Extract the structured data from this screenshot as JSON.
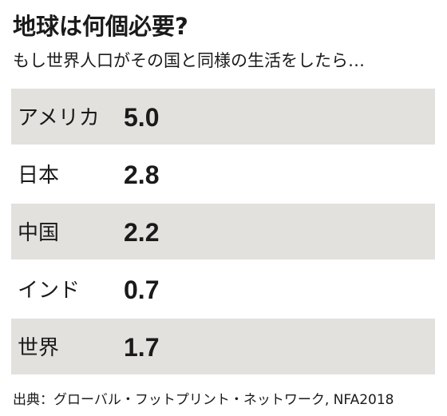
{
  "title": "地球は何個必要?",
  "subtitle": "もし世界人口がその国と同様の生活をしたら…",
  "source": "出典：グローバル・フットプリント・ネットワーク, NFA2018",
  "colors": {
    "row_shaded": "#e3e1de",
    "row_plain": "#ffffff",
    "ocean": "#123f9b",
    "land": "#2e9a5a",
    "text": "#1a1a1a"
  },
  "chart_data": {
    "type": "bar",
    "title": "地球は何個必要?",
    "categories": [
      "アメリカ",
      "日本",
      "中国",
      "インド",
      "世界"
    ],
    "values": [
      5.0,
      2.8,
      2.2,
      0.7,
      1.7
    ],
    "value_labels": [
      "5.0",
      "2.8",
      "2.2",
      "0.7",
      "1.7"
    ],
    "unit_icon": "earth-globe-icon",
    "xlabel": "",
    "ylabel": ""
  }
}
